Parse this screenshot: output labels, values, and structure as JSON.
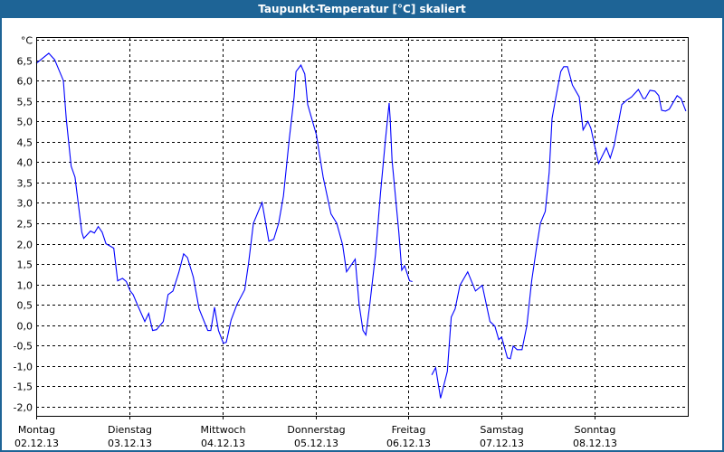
{
  "window": {
    "title": "Taupunkt-Temperatur [°C] skaliert"
  },
  "chart_data": {
    "type": "line",
    "title": "Taupunkt-Temperatur [°C] skaliert",
    "ylabel": "°C",
    "ylim": [
      -2.0,
      7.0
    ],
    "yticks": [
      {
        "v": 7.0,
        "label": "°C"
      },
      {
        "v": 6.5,
        "label": "6,5"
      },
      {
        "v": 6.0,
        "label": "6,0"
      },
      {
        "v": 5.5,
        "label": "5,5"
      },
      {
        "v": 5.0,
        "label": "5,0"
      },
      {
        "v": 4.5,
        "label": "4,5"
      },
      {
        "v": 4.0,
        "label": "4,0"
      },
      {
        "v": 3.5,
        "label": "3,5"
      },
      {
        "v": 3.0,
        "label": "3,0"
      },
      {
        "v": 2.5,
        "label": "2,5"
      },
      {
        "v": 2.0,
        "label": "2,0"
      },
      {
        "v": 1.5,
        "label": "1,5"
      },
      {
        "v": 1.0,
        "label": "1,0"
      },
      {
        "v": 0.5,
        "label": "0,5"
      },
      {
        "v": 0.0,
        "label": "0,0"
      },
      {
        "v": -0.5,
        "label": "-0,5"
      },
      {
        "v": -1.0,
        "label": "-1,0"
      },
      {
        "v": -1.5,
        "label": "-1,5"
      },
      {
        "v": -2.0,
        "label": "-2,0"
      }
    ],
    "xlim": [
      "2013-12-02 00:00",
      "2013-12-09 00:00"
    ],
    "xticks": [
      {
        "t": "2013-12-02 00:00",
        "day": "Montag",
        "date": "02.12.13"
      },
      {
        "t": "2013-12-03 00:00",
        "day": "Dienstag",
        "date": "03.12.13"
      },
      {
        "t": "2013-12-04 00:00",
        "day": "Mittwoch",
        "date": "04.12.13"
      },
      {
        "t": "2013-12-05 00:00",
        "day": "Donnerstag",
        "date": "05.12.13"
      },
      {
        "t": "2013-12-06 00:00",
        "day": "Freitag",
        "date": "06.12.13"
      },
      {
        "t": "2013-12-07 00:00",
        "day": "Samstag",
        "date": "07.12.13"
      },
      {
        "t": "2013-12-08 00:00",
        "day": "Sonntag",
        "date": "08.12.13"
      }
    ],
    "grid": true,
    "series": [
      {
        "color": "#0000ff",
        "points": [
          [
            "2013-12-02 00:00",
            6.42
          ],
          [
            "2013-12-02 03:15",
            6.67
          ],
          [
            "2013-12-02 04:45",
            6.51
          ],
          [
            "2013-12-02 07:00",
            6.0
          ],
          [
            "2013-12-02 07:45",
            5.07
          ],
          [
            "2013-12-02 09:00",
            3.9
          ],
          [
            "2013-12-02 10:00",
            3.63
          ],
          [
            "2013-12-02 11:45",
            2.28
          ],
          [
            "2013-12-02 12:15",
            2.13
          ],
          [
            "2013-12-02 14:00",
            2.31
          ],
          [
            "2013-12-02 15:00",
            2.26
          ],
          [
            "2013-12-02 16:00",
            2.42
          ],
          [
            "2013-12-02 17:00",
            2.28
          ],
          [
            "2013-12-02 18:00",
            2.0
          ],
          [
            "2013-12-02 20:00",
            1.89
          ],
          [
            "2013-12-02 21:00",
            1.09
          ],
          [
            "2013-12-02 22:15",
            1.15
          ],
          [
            "2013-12-02 23:15",
            1.07
          ],
          [
            "2013-12-03 00:15",
            0.84
          ],
          [
            "2013-12-03 01:00",
            0.75
          ],
          [
            "2013-12-03 02:15",
            0.47
          ],
          [
            "2013-12-03 04:00",
            0.09
          ],
          [
            "2013-12-03 05:00",
            0.29
          ],
          [
            "2013-12-03 06:00",
            -0.13
          ],
          [
            "2013-12-03 07:00",
            -0.11
          ],
          [
            "2013-12-03 08:45",
            0.09
          ],
          [
            "2013-12-03 10:00",
            0.75
          ],
          [
            "2013-12-03 11:15",
            0.84
          ],
          [
            "2013-12-03 12:45",
            1.29
          ],
          [
            "2013-12-03 14:00",
            1.75
          ],
          [
            "2013-12-03 15:00",
            1.66
          ],
          [
            "2013-12-03 16:30",
            1.18
          ],
          [
            "2013-12-03 18:00",
            0.4
          ],
          [
            "2013-12-03 20:15",
            -0.13
          ],
          [
            "2013-12-03 21:00",
            -0.13
          ],
          [
            "2013-12-03 22:00",
            0.44
          ],
          [
            "2013-12-03 23:00",
            -0.13
          ],
          [
            "2013-12-04 00:15",
            -0.44
          ],
          [
            "2013-12-04 01:00",
            -0.42
          ],
          [
            "2013-12-04 02:15",
            0.13
          ],
          [
            "2013-12-04 03:45",
            0.51
          ],
          [
            "2013-12-04 05:45",
            0.87
          ],
          [
            "2013-12-04 06:45",
            1.51
          ],
          [
            "2013-12-04 08:00",
            2.5
          ],
          [
            "2013-12-04 09:15",
            2.79
          ],
          [
            "2013-12-04 10:15",
            3.01
          ],
          [
            "2013-12-04 12:00",
            2.06
          ],
          [
            "2013-12-04 13:15",
            2.11
          ],
          [
            "2013-12-04 14:30",
            2.5
          ],
          [
            "2013-12-04 15:45",
            3.17
          ],
          [
            "2013-12-04 17:15",
            4.56
          ],
          [
            "2013-12-04 18:30",
            5.6
          ],
          [
            "2013-12-04 19:00",
            6.22
          ],
          [
            "2013-12-04 20:15",
            6.38
          ],
          [
            "2013-12-04 21:15",
            6.16
          ],
          [
            "2013-12-04 22:00",
            5.41
          ],
          [
            "2013-12-05 00:15",
            4.67
          ],
          [
            "2013-12-05 02:00",
            3.63
          ],
          [
            "2013-12-05 04:00",
            2.73
          ],
          [
            "2013-12-05 05:30",
            2.5
          ],
          [
            "2013-12-05 07:00",
            1.97
          ],
          [
            "2013-12-05 08:00",
            1.31
          ],
          [
            "2013-12-05 10:15",
            1.62
          ],
          [
            "2013-12-05 11:15",
            0.51
          ],
          [
            "2013-12-05 12:15",
            -0.13
          ],
          [
            "2013-12-05 13:00",
            -0.24
          ],
          [
            "2013-12-05 14:00",
            0.51
          ],
          [
            "2013-12-05 15:30",
            1.75
          ],
          [
            "2013-12-05 16:45",
            3.23
          ],
          [
            "2013-12-05 18:00",
            4.5
          ],
          [
            "2013-12-05 19:00",
            5.45
          ],
          [
            "2013-12-05 19:15",
            5.07
          ],
          [
            "2013-12-05 19:45",
            4.05
          ],
          [
            "2013-12-05 21:30",
            2.28
          ],
          [
            "2013-12-05 22:15",
            1.35
          ],
          [
            "2013-12-05 23:00",
            1.46
          ],
          [
            "2013-12-06 00:15",
            1.09
          ],
          [
            "2013-12-06 01:00",
            1.07
          ],
          [
            "2013-12-06 03:30",
            null
          ],
          [
            "2013-12-06 06:00",
            -1.22
          ],
          [
            "2013-12-06 07:00",
            -1.04
          ],
          [
            "2013-12-06 08:15",
            -1.79
          ],
          [
            "2013-12-06 10:00",
            -1.13
          ],
          [
            "2013-12-06 11:00",
            0.2
          ],
          [
            "2013-12-06 12:00",
            0.4
          ],
          [
            "2013-12-06 13:15",
            0.98
          ],
          [
            "2013-12-06 15:15",
            1.31
          ],
          [
            "2013-12-06 17:15",
            0.84
          ],
          [
            "2013-12-06 19:00",
            0.98
          ],
          [
            "2013-12-06 21:00",
            0.09
          ],
          [
            "2013-12-06 22:15",
            -0.02
          ],
          [
            "2013-12-06 23:15",
            -0.35
          ],
          [
            "2013-12-07 00:00",
            -0.29
          ],
          [
            "2013-12-07 01:30",
            -0.8
          ],
          [
            "2013-12-07 02:15",
            -0.82
          ],
          [
            "2013-12-07 03:00",
            -0.51
          ],
          [
            "2013-12-07 04:00",
            -0.6
          ],
          [
            "2013-12-07 05:15",
            -0.6
          ],
          [
            "2013-12-07 06:30",
            -0.02
          ],
          [
            "2013-12-07 07:45",
            1.09
          ],
          [
            "2013-12-07 09:00",
            1.91
          ],
          [
            "2013-12-07 10:00",
            2.5
          ],
          [
            "2013-12-07 11:15",
            2.79
          ],
          [
            "2013-12-07 12:15",
            3.74
          ],
          [
            "2013-12-07 13:00",
            5.07
          ],
          [
            "2013-12-07 14:00",
            5.6
          ],
          [
            "2013-12-07 15:15",
            6.22
          ],
          [
            "2013-12-07 16:00",
            6.34
          ],
          [
            "2013-12-07 17:00",
            6.34
          ],
          [
            "2013-12-07 18:15",
            5.89
          ],
          [
            "2013-12-07 20:00",
            5.6
          ],
          [
            "2013-12-07 21:00",
            4.79
          ],
          [
            "2013-12-07 22:15",
            5.0
          ],
          [
            "2013-12-07 23:00",
            4.83
          ],
          [
            "2013-12-08 01:00",
            3.97
          ],
          [
            "2013-12-08 03:00",
            4.35
          ],
          [
            "2013-12-08 04:00",
            4.1
          ],
          [
            "2013-12-08 05:00",
            4.41
          ],
          [
            "2013-12-08 07:00",
            5.41
          ],
          [
            "2013-12-08 08:15",
            5.52
          ],
          [
            "2013-12-08 09:30",
            5.6
          ],
          [
            "2013-12-08 11:15",
            5.78
          ],
          [
            "2013-12-08 12:30",
            5.56
          ],
          [
            "2013-12-08 13:00",
            5.56
          ],
          [
            "2013-12-08 14:15",
            5.76
          ],
          [
            "2013-12-08 15:30",
            5.74
          ],
          [
            "2013-12-08 16:30",
            5.63
          ],
          [
            "2013-12-08 17:15",
            5.27
          ],
          [
            "2013-12-08 18:15",
            5.25
          ],
          [
            "2013-12-08 19:15",
            5.3
          ],
          [
            "2013-12-08 21:15",
            5.63
          ],
          [
            "2013-12-08 22:15",
            5.56
          ],
          [
            "2013-12-08 23:30",
            5.25
          ]
        ]
      }
    ]
  },
  "colors": {
    "titlebar": "#1e6496",
    "line": "#0000ff",
    "grid": "#000000"
  }
}
